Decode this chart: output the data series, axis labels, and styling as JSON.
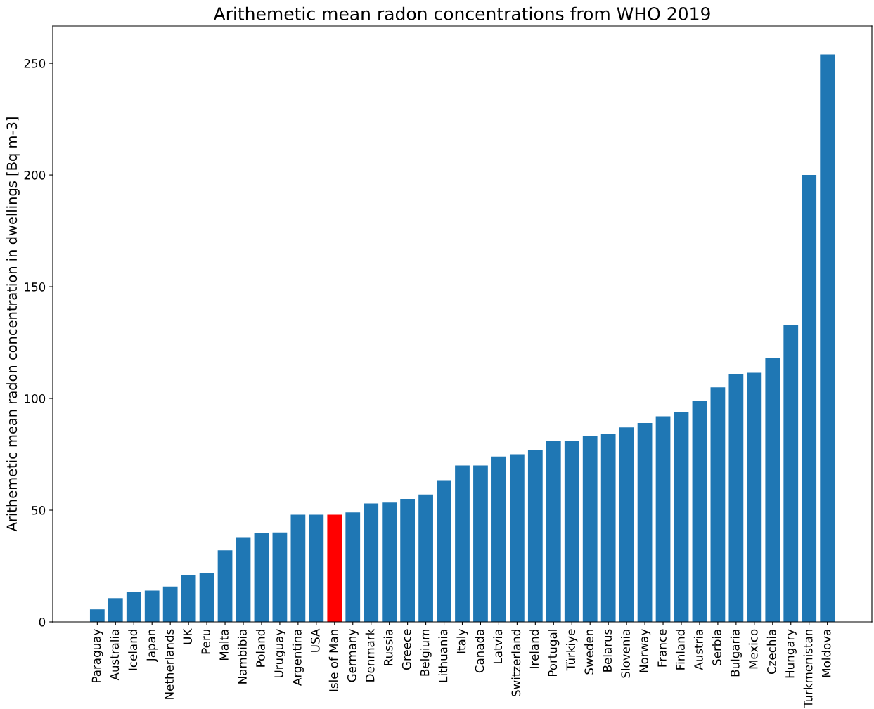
{
  "chart_data": {
    "type": "bar",
    "title": "Arithemetic mean radon concentrations from WHO 2019",
    "ylabel": "Arithemetic mean radon concentration in dwellings [Bq m-3]",
    "categories": [
      "Paraguay",
      "Australia",
      "Iceland",
      "Japan",
      "Netherlands",
      "UK",
      "Peru",
      "Malta",
      "Nambibia",
      "Poland",
      "Uruguay",
      "Argentina",
      "USA",
      "Isle of Man",
      "Germany",
      "Denmark",
      "Russia",
      "Greece",
      "Belgium",
      "Lithuania",
      "Italy",
      "Canada",
      "Latvia",
      "Switzerland",
      "Ireland",
      "Portugal",
      "Türkiye",
      "Sweden",
      "Belarus",
      "Slovenia",
      "Norway",
      "France",
      "Finland",
      "Austria",
      "Serbia",
      "Bulgaria",
      "Mexico",
      "Czechia",
      "Hungary",
      "Turkmenistan",
      "Moldova"
    ],
    "values": [
      5.6,
      10.6,
      13.4,
      14,
      15.8,
      20.8,
      22,
      32,
      37.9,
      39.8,
      40,
      48,
      48,
      48,
      49,
      53,
      53.4,
      55,
      57,
      63.4,
      70,
      70,
      74,
      75,
      77,
      81,
      81,
      83,
      84,
      87,
      89,
      92,
      94,
      99,
      105,
      111,
      111.5,
      118,
      133,
      200,
      254
    ],
    "colors": [
      "#1f77b4",
      "#1f77b4",
      "#1f77b4",
      "#1f77b4",
      "#1f77b4",
      "#1f77b4",
      "#1f77b4",
      "#1f77b4",
      "#1f77b4",
      "#1f77b4",
      "#1f77b4",
      "#1f77b4",
      "#1f77b4",
      "#ff0000",
      "#1f77b4",
      "#1f77b4",
      "#1f77b4",
      "#1f77b4",
      "#1f77b4",
      "#1f77b4",
      "#1f77b4",
      "#1f77b4",
      "#1f77b4",
      "#1f77b4",
      "#1f77b4",
      "#1f77b4",
      "#1f77b4",
      "#1f77b4",
      "#1f77b4",
      "#1f77b4",
      "#1f77b4",
      "#1f77b4",
      "#1f77b4",
      "#1f77b4",
      "#1f77b4",
      "#1f77b4",
      "#1f77b4",
      "#1f77b4",
      "#1f77b4",
      "#1f77b4",
      "#1f77b4"
    ],
    "ylim": [
      0,
      266.7
    ],
    "yticks": [
      0,
      50,
      100,
      150,
      200,
      250
    ],
    "grid": false
  }
}
